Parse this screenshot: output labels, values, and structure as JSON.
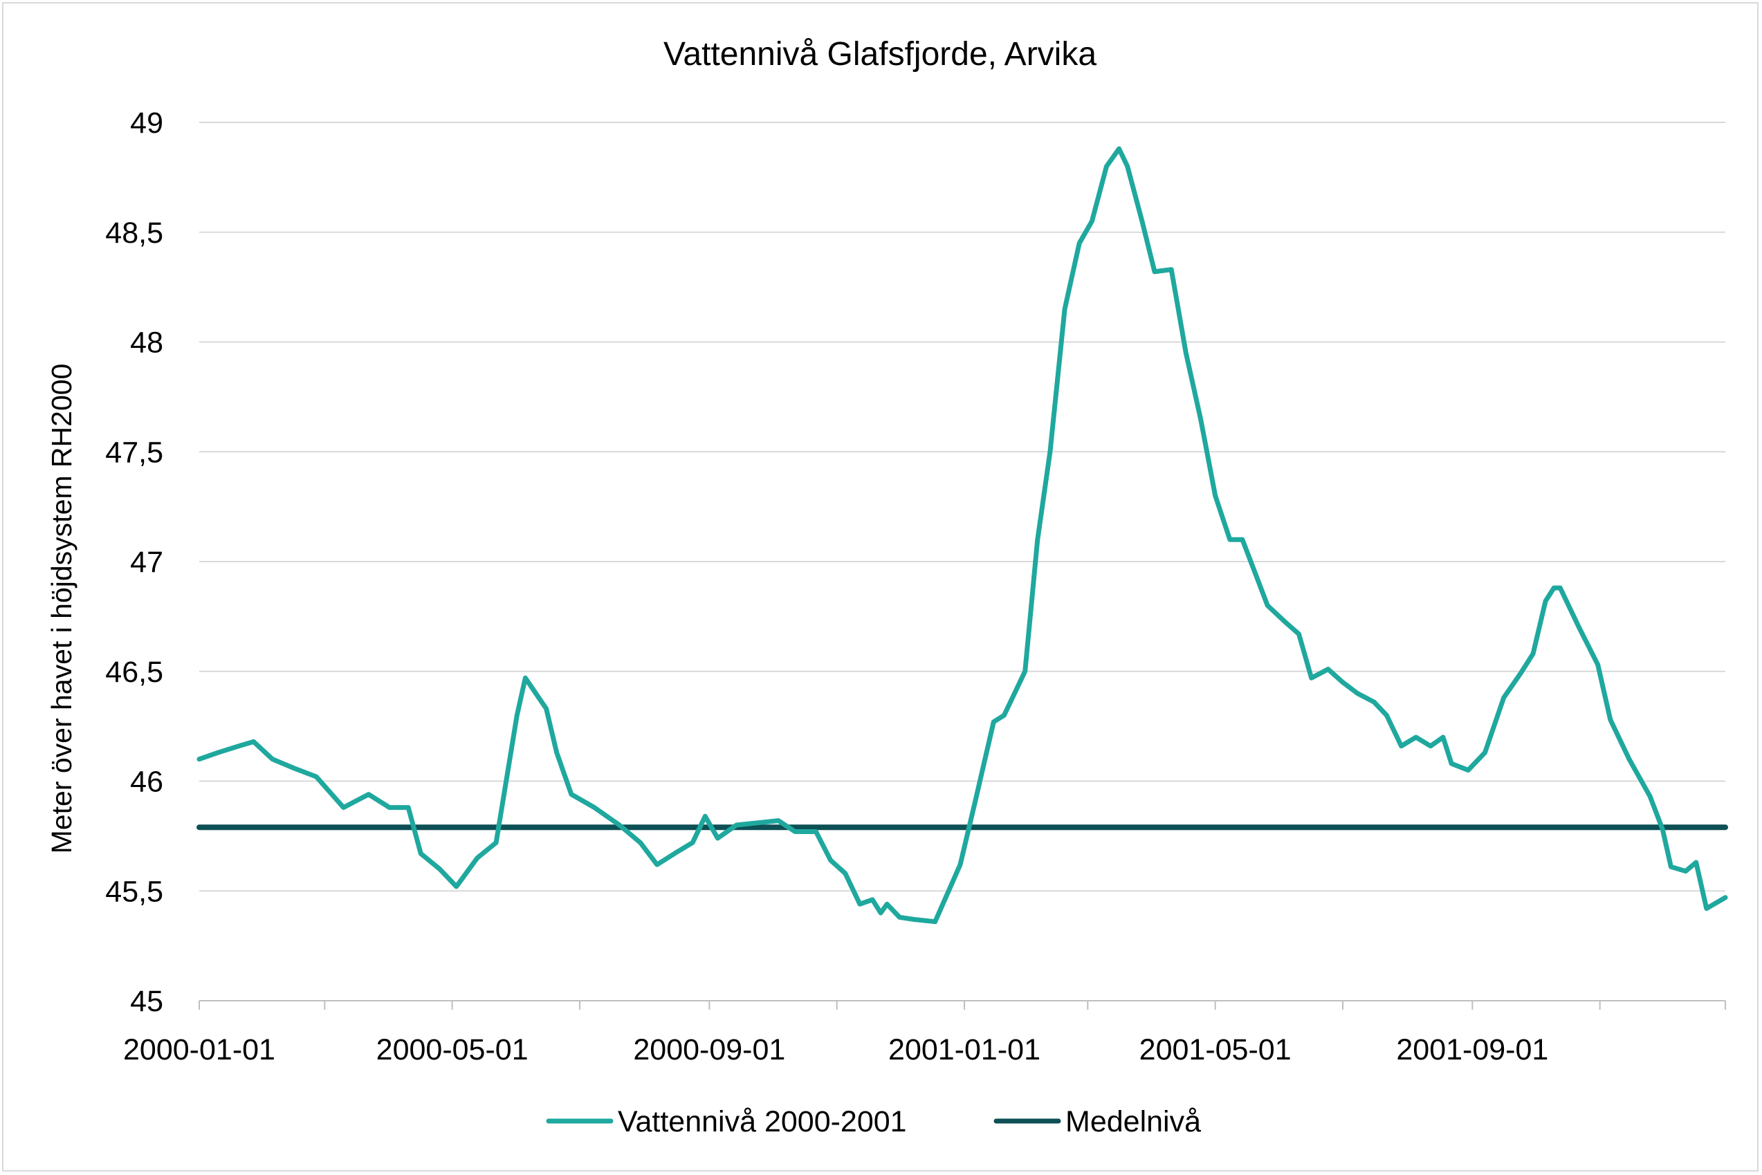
{
  "chart_data": {
    "type": "line",
    "title": "Vattennivå Glafsfjorde, Arvika",
    "xlabel": "",
    "ylabel": "Meter över havet i höjdsystem RH2000",
    "ylim": [
      45,
      49
    ],
    "y_ticks": [
      "45",
      "45,5",
      "46",
      "46,5",
      "47",
      "47,5",
      "48",
      "48,5",
      "49"
    ],
    "y_tick_values": [
      45,
      45.5,
      46,
      46.5,
      47,
      47.5,
      48,
      48.5,
      49
    ],
    "x_range": [
      "2000-01-01",
      "2001-12-31"
    ],
    "x_ticks": [
      "2000-01-01",
      "2000-05-01",
      "2000-09-01",
      "2001-01-01",
      "2001-05-01",
      "2001-09-01"
    ],
    "grid": "horizontal",
    "legend_position": "bottom",
    "series": [
      {
        "name": "Vattennivå 2000-2001",
        "color": "#1fa89e",
        "points": [
          [
            "2000-01-01",
            46.1
          ],
          [
            "2000-01-10",
            46.13
          ],
          [
            "2000-01-20",
            46.16
          ],
          [
            "2000-01-27",
            46.18
          ],
          [
            "2000-02-05",
            46.1
          ],
          [
            "2000-02-15",
            46.06
          ],
          [
            "2000-02-26",
            46.02
          ],
          [
            "2000-03-10",
            45.88
          ],
          [
            "2000-03-22",
            45.94
          ],
          [
            "2000-04-01",
            45.88
          ],
          [
            "2000-04-10",
            45.88
          ],
          [
            "2000-04-16",
            45.67
          ],
          [
            "2000-04-25",
            45.6
          ],
          [
            "2000-05-03",
            45.52
          ],
          [
            "2000-05-13",
            45.65
          ],
          [
            "2000-05-22",
            45.72
          ],
          [
            "2000-06-01",
            46.3
          ],
          [
            "2000-06-05",
            46.47
          ],
          [
            "2000-06-10",
            46.4
          ],
          [
            "2000-06-15",
            46.33
          ],
          [
            "2000-06-20",
            46.13
          ],
          [
            "2000-06-27",
            45.94
          ],
          [
            "2000-07-08",
            45.88
          ],
          [
            "2000-07-20",
            45.8
          ],
          [
            "2000-07-30",
            45.72
          ],
          [
            "2000-08-07",
            45.62
          ],
          [
            "2000-08-17",
            45.68
          ],
          [
            "2000-08-24",
            45.72
          ],
          [
            "2000-08-30",
            45.84
          ],
          [
            "2000-09-05",
            45.74
          ],
          [
            "2000-09-14",
            45.8
          ],
          [
            "2000-09-24",
            45.81
          ],
          [
            "2000-10-04",
            45.82
          ],
          [
            "2000-10-12",
            45.77
          ],
          [
            "2000-10-22",
            45.77
          ],
          [
            "2000-10-29",
            45.64
          ],
          [
            "2000-11-05",
            45.58
          ],
          [
            "2000-11-12",
            45.44
          ],
          [
            "2000-11-18",
            45.46
          ],
          [
            "2000-11-22",
            45.4
          ],
          [
            "2000-11-25",
            45.44
          ],
          [
            "2000-12-01",
            45.38
          ],
          [
            "2000-12-08",
            45.37
          ],
          [
            "2000-12-18",
            45.36
          ],
          [
            "2000-12-30",
            45.62
          ],
          [
            "2001-01-06",
            45.9
          ],
          [
            "2001-01-15",
            46.27
          ],
          [
            "2001-01-20",
            46.3
          ],
          [
            "2001-01-30",
            46.5
          ],
          [
            "2001-02-05",
            47.1
          ],
          [
            "2001-02-11",
            47.5
          ],
          [
            "2001-02-18",
            48.15
          ],
          [
            "2001-02-25",
            48.45
          ],
          [
            "2001-03-03",
            48.55
          ],
          [
            "2001-03-10",
            48.8
          ],
          [
            "2001-03-16",
            48.88
          ],
          [
            "2001-03-20",
            48.8
          ],
          [
            "2001-03-27",
            48.55
          ],
          [
            "2001-04-02",
            48.32
          ],
          [
            "2001-04-10",
            48.33
          ],
          [
            "2001-04-17",
            47.95
          ],
          [
            "2001-04-24",
            47.65
          ],
          [
            "2001-05-01",
            47.3
          ],
          [
            "2001-05-08",
            47.1
          ],
          [
            "2001-05-14",
            47.1
          ],
          [
            "2001-05-20",
            46.95
          ],
          [
            "2001-05-26",
            46.8
          ],
          [
            "2001-06-04",
            46.72
          ],
          [
            "2001-06-10",
            46.67
          ],
          [
            "2001-06-16",
            46.47
          ],
          [
            "2001-06-24",
            46.51
          ],
          [
            "2001-07-01",
            46.45
          ],
          [
            "2001-07-08",
            46.4
          ],
          [
            "2001-07-16",
            46.36
          ],
          [
            "2001-07-22",
            46.3
          ],
          [
            "2001-07-29",
            46.16
          ],
          [
            "2001-08-05",
            46.2
          ],
          [
            "2001-08-12",
            46.16
          ],
          [
            "2001-08-18",
            46.2
          ],
          [
            "2001-08-22",
            46.08
          ],
          [
            "2001-08-30",
            46.05
          ],
          [
            "2001-09-07",
            46.13
          ],
          [
            "2001-09-16",
            46.38
          ],
          [
            "2001-09-24",
            46.49
          ],
          [
            "2001-09-30",
            46.58
          ],
          [
            "2001-10-06",
            46.82
          ],
          [
            "2001-10-10",
            46.88
          ],
          [
            "2001-10-13",
            46.88
          ],
          [
            "2001-10-22",
            46.7
          ],
          [
            "2001-10-31",
            46.53
          ],
          [
            "2001-11-06",
            46.28
          ],
          [
            "2001-11-15",
            46.1
          ],
          [
            "2001-11-25",
            45.93
          ],
          [
            "2001-12-01",
            45.78
          ],
          [
            "2001-12-05",
            45.61
          ],
          [
            "2001-12-12",
            45.59
          ],
          [
            "2001-12-17",
            45.63
          ],
          [
            "2001-12-22",
            45.42
          ],
          [
            "2001-12-31",
            45.47
          ]
        ]
      },
      {
        "name": "Medelnivå",
        "color": "#0d5055",
        "points": [
          [
            "2000-01-01",
            45.79
          ],
          [
            "2001-12-31",
            45.79
          ]
        ]
      }
    ]
  }
}
